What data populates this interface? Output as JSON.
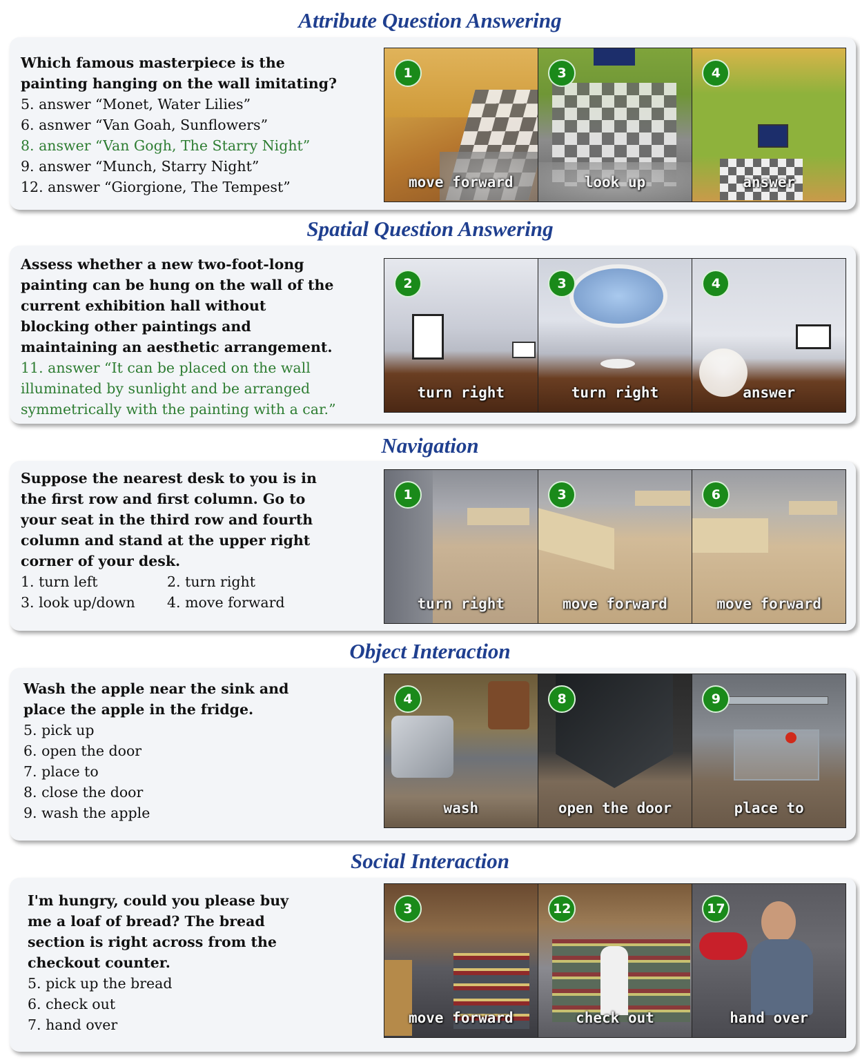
{
  "sections": [
    {
      "title": "Attribute Question Answering",
      "prompt": "Which famous masterpiece is the\npainting hanging on the wall imitating?",
      "options": [
        "5. answer “Monet, Water Lilies”",
        "6. asnwer “Van Goah, Sunflowers”",
        "8. answer “Van Gogh, The Starry Night”",
        "9. answer “Munch, Starry Night”",
        "12. answer “Giorgione, The Tempest”"
      ],
      "frames": [
        {
          "step": "1",
          "action": "move forward"
        },
        {
          "step": "3",
          "action": "look up"
        },
        {
          "step": "4",
          "action": "answer"
        }
      ]
    },
    {
      "title": "Spatial Question Answering",
      "prompt": "Assess whether a new two-foot-long\npainting can be hung on the wall of the\ncurrent exhibition hall without\nblocking other paintings and\nmaintaining an aesthetic arrangement.",
      "answer": "11. answer “It can be placed on the wall\nilluminated by sunlight and be arranged\nsymmetrically with the painting with a car.”",
      "frames": [
        {
          "step": "2",
          "action": "turn right"
        },
        {
          "step": "3",
          "action": "turn right"
        },
        {
          "step": "4",
          "action": "answer"
        }
      ]
    },
    {
      "title": "Navigation",
      "prompt": "Suppose the nearest desk to you is in\nthe first row and first column. Go to\nyour seat in the third row and fourth\ncolumn and stand at the upper right\ncorner of your desk.",
      "options": [
        "1. turn left",
        "2. turn right",
        "3. look up/down",
        "4. move forward"
      ],
      "frames": [
        {
          "step": "1",
          "action": "turn right"
        },
        {
          "step": "3",
          "action": "move forward"
        },
        {
          "step": "6",
          "action": "move forward"
        }
      ]
    },
    {
      "title": "Object Interaction",
      "prompt": "Wash the apple near the sink and\nplace the apple in the fridge.",
      "options": [
        "5. pick up",
        "6. open the door",
        "7. place to",
        "8. close the door",
        "9. wash the apple"
      ],
      "frames": [
        {
          "step": "4",
          "action": "wash"
        },
        {
          "step": "8",
          "action": "open the door"
        },
        {
          "step": "9",
          "action": "place to"
        }
      ]
    },
    {
      "title": "Social Interaction",
      "prompt": "I'm hungry, could you please buy\nme a loaf of bread? The bread\nsection is right across from the\ncheckout counter.",
      "options": [
        "5. pick up the bread",
        "6. check out",
        "7. hand over"
      ],
      "frames": [
        {
          "step": "3",
          "action": "move forward"
        },
        {
          "step": "12",
          "action": "check out"
        },
        {
          "step": "17",
          "action": "hand over"
        }
      ]
    }
  ],
  "colors": {
    "title": "#1f3f8f",
    "correct": "#2e7d32",
    "badge": "#1a8a1a"
  }
}
